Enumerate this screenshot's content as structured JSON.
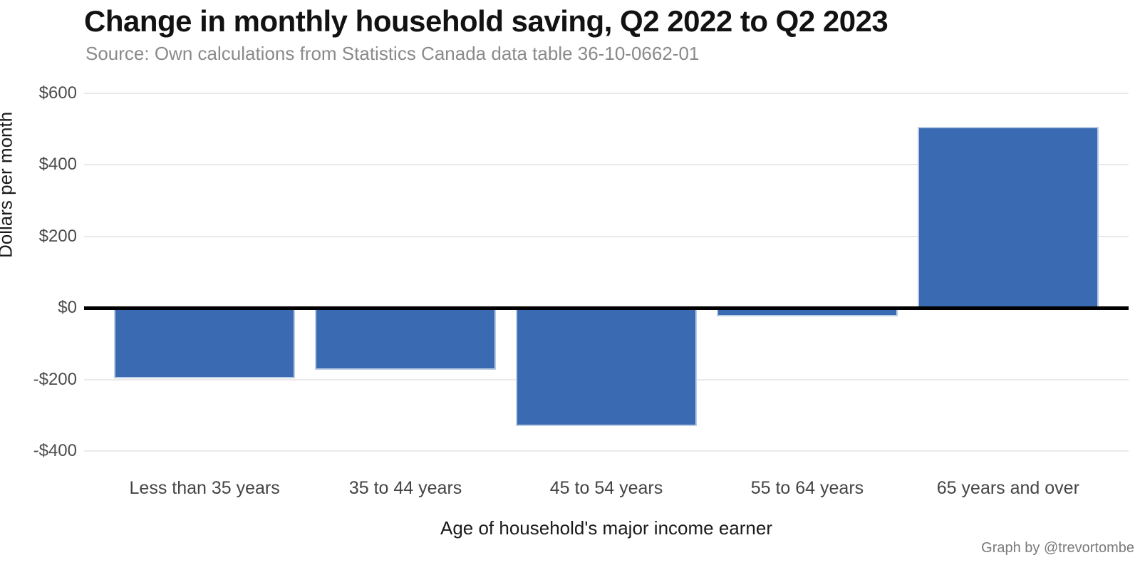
{
  "header": {
    "title": "Change in monthly household saving, Q2 2022 to Q2 2023",
    "subtitle": "Source: Own calculations from Statistics Canada data table 36-10-0662-01"
  },
  "chart_data": {
    "type": "bar",
    "title": "Change in monthly household saving, Q2 2022 to Q2 2023",
    "subtitle": "Source: Own calculations from Statistics Canada data table 36-10-0662-01",
    "categories": [
      "Less than 35 years",
      "35 to 44 years",
      "45 to 54 years",
      "55 to 64 years",
      "65 years and over"
    ],
    "values": [
      -197,
      -172,
      -330,
      -24,
      507
    ],
    "xlabel": "Age of household's major income earner",
    "ylabel": "Dollars per month",
    "ylim": [
      -400,
      600
    ],
    "yticks": [
      {
        "value": 600,
        "label": "$600"
      },
      {
        "value": 400,
        "label": "$400"
      },
      {
        "value": 200,
        "label": "$200"
      },
      {
        "value": 0,
        "label": "$0"
      },
      {
        "value": -200,
        "label": "-$200"
      },
      {
        "value": -400,
        "label": "-$400"
      }
    ],
    "legend_position": "none",
    "grid": "horizontal",
    "bar_color": "#3A6BB2",
    "grid_color": "#E9E9E9",
    "zero_line_color": "#000000"
  },
  "footer": {
    "credit": "Graph by @trevortombe"
  }
}
